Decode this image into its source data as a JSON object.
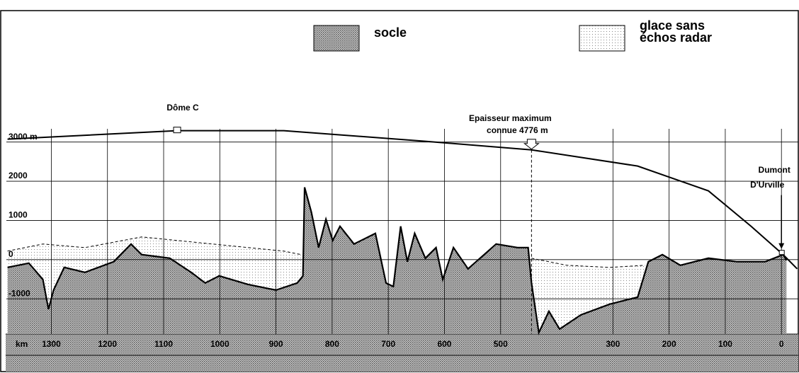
{
  "chart_data": {
    "type": "line",
    "xlabel": "km",
    "xlim": [
      1380,
      -30
    ],
    "xticks": [
      1300,
      1200,
      1100,
      1000,
      900,
      800,
      700,
      600,
      500,
      300,
      200,
      100,
      0
    ],
    "ylim": [
      -1900,
      3500
    ],
    "yticks": [
      {
        "value": 3000,
        "label": "3000 m"
      },
      2000,
      1000,
      0,
      {
        "value": -1000,
        "label": "-1000"
      }
    ],
    "grid": true,
    "series": [
      {
        "name": "socle",
        "color": "#8c8c8c",
        "x": [
          1378,
          1340,
          1315,
          1305,
          1296,
          1277,
          1240,
          1189,
          1158,
          1139,
          1089,
          1051,
          1026,
          1001,
          950,
          900,
          862,
          852,
          849,
          837,
          824,
          811,
          799,
          786,
          761,
          723,
          704,
          691,
          678,
          666,
          653,
          634,
          615,
          603,
          584,
          558,
          508,
          470,
          451,
          445,
          432,
          414,
          395,
          357,
          306,
          256,
          237,
          212,
          180,
          130,
          79,
          29,
          -3,
          -9
        ],
        "values": [
          -199,
          -90,
          -506,
          -1266,
          -778,
          -199,
          -325,
          -54,
          398,
          127,
          36,
          -325,
          -597,
          -416,
          -633,
          -778,
          -597,
          -416,
          1844,
          1212,
          307,
          1031,
          488,
          850,
          398,
          669,
          -597,
          -687,
          850,
          -54,
          669,
          36,
          307,
          -506,
          307,
          -236,
          398,
          307,
          307,
          -597,
          -1863,
          -1320,
          -1772,
          -1410,
          -1139,
          -958,
          -54,
          127,
          -145,
          36,
          -54,
          -54,
          127,
          -18
        ]
      },
      {
        "name": "glace sans échos radar",
        "color": "#e2e2e2",
        "x": [
          1378,
          1315,
          1240,
          1139,
          1013,
          886,
          855,
          null,
          445,
          382,
          306,
          243
        ],
        "values": [
          217,
          398,
          307,
          579,
          398,
          217,
          127,
          null,
          36,
          -145,
          -199,
          -145
        ]
      },
      {
        "color": "#000000",
        "x": [
          1378,
          1076,
          886,
          634,
          445,
          256,
          130,
          54,
          -3,
          -28
        ],
        "values": [
          3074,
          3290,
          3290,
          3020,
          2800,
          2387,
          1754,
          850,
          127,
          -235
        ]
      }
    ],
    "annotations": [
      {
        "text": "Dôme C",
        "x": 1076
      },
      {
        "text": "Epaisseur maximum",
        "x": 445
      },
      {
        "text": "connue 4776 m",
        "x": 445
      },
      {
        "text": "Dumont",
        "x": 0
      },
      {
        "text": "D'Urville",
        "x": 0
      }
    ]
  }
}
